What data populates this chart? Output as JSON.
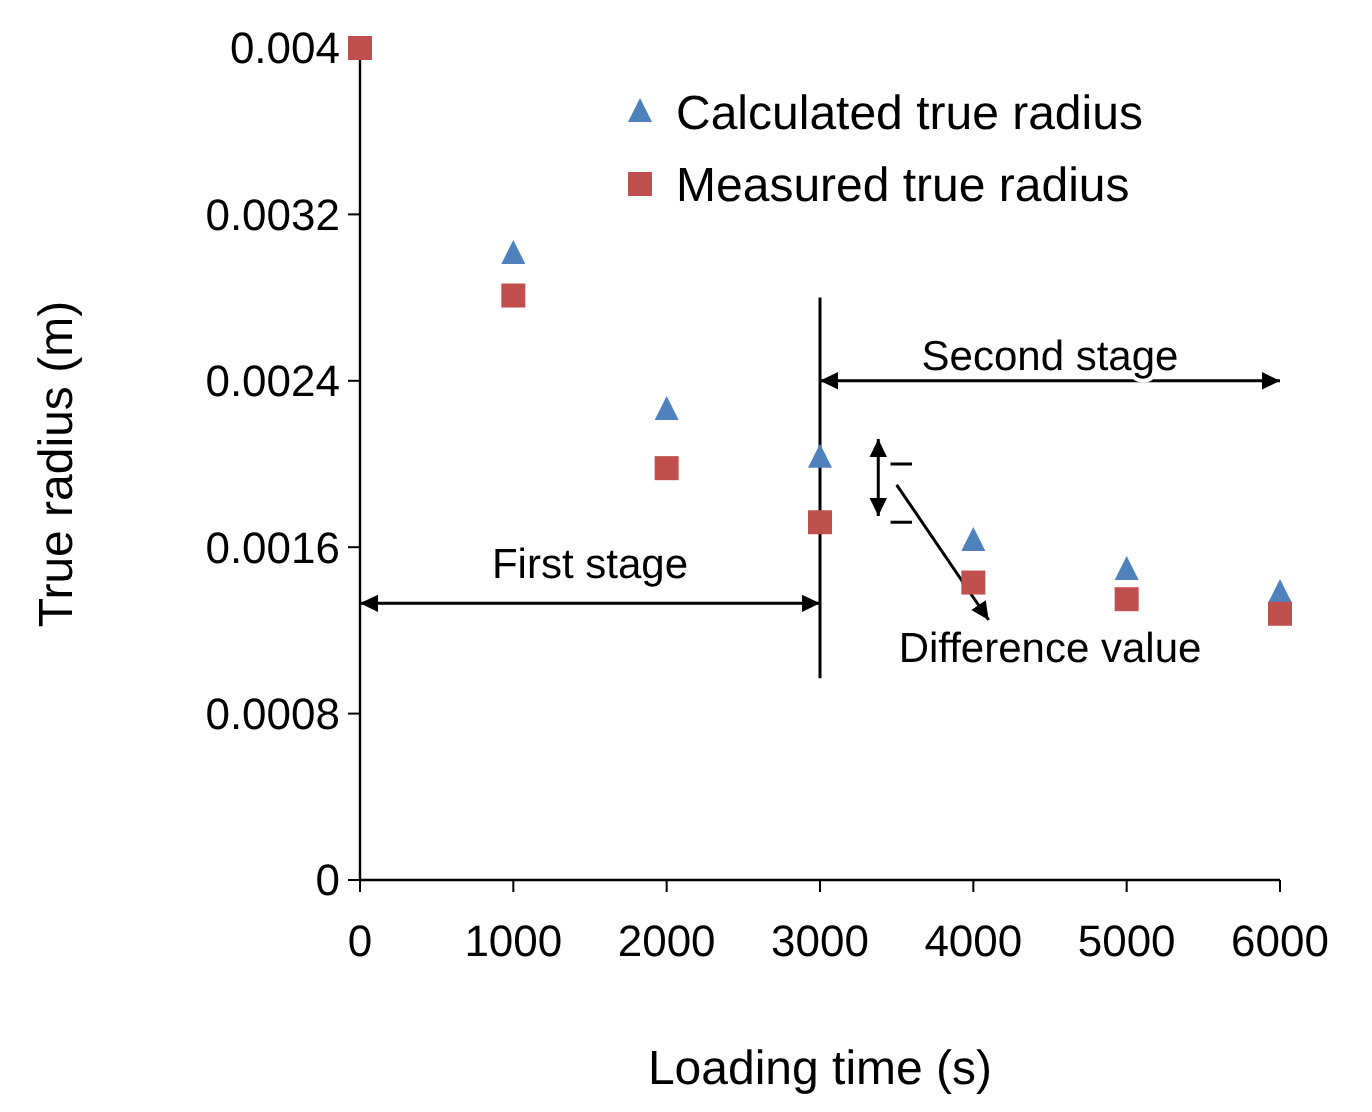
{
  "chart_data": {
    "type": "scatter",
    "xlabel": "Loading time (s)",
    "ylabel": "True radius (m)",
    "x": [
      0,
      1000,
      2000,
      3000,
      4000,
      5000,
      6000
    ],
    "series": [
      {
        "name": "Calculated true radius",
        "color": "#4f81bd",
        "marker": "triangle",
        "values": [
          null,
          0.00301,
          0.00226,
          0.00203,
          0.00163,
          0.00149,
          0.00138
        ]
      },
      {
        "name": "Measured true radius",
        "color": "#c0504d",
        "marker": "square",
        "values": [
          0.004,
          0.00281,
          0.00198,
          0.00172,
          0.00143,
          0.00135,
          0.00128
        ]
      }
    ],
    "xlim": [
      0,
      6000
    ],
    "xticks": [
      0,
      1000,
      2000,
      3000,
      4000,
      5000,
      6000
    ],
    "ylim": [
      0,
      0.004
    ],
    "yticks": [
      0,
      0.0008,
      0.0016,
      0.0024,
      0.0032,
      0.004
    ],
    "grid": false,
    "legend": "top right",
    "annotations": [
      "First stage",
      "Second stage",
      "Difference value"
    ]
  }
}
